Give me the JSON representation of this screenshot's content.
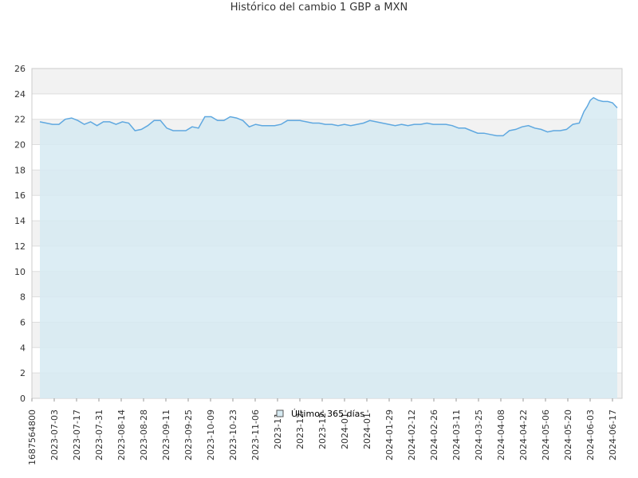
{
  "chart_data": {
    "type": "area",
    "title": "Histórico del cambio 1 GBP a MXN",
    "xlabel": "",
    "ylabel": "",
    "ylim": [
      0,
      26
    ],
    "yticks": [
      0,
      2,
      4,
      6,
      8,
      10,
      12,
      14,
      16,
      18,
      20,
      22,
      24,
      26
    ],
    "x_tick_labels": [
      "1687564800",
      "2023-07-03",
      "2023-07-17",
      "2023-07-31",
      "2023-08-14",
      "2023-08-28",
      "2023-09-11",
      "2023-09-25",
      "2023-10-09",
      "2023-10-23",
      "2023-11-06",
      "2023-11-",
      "2023-12-",
      "2023-12-",
      "2024-01-",
      "2024-01-",
      "2024-01-29",
      "2024-02-12",
      "2024-02-26",
      "2024-03-11",
      "2024-03-25",
      "2024-04-08",
      "2024-04-22",
      "2024-05-06",
      "2024-05-20",
      "2024-06-03",
      "2024-06-17"
    ],
    "grid": true,
    "legend_position": "bottom-center",
    "series": [
      {
        "name": "Últimos 365 días",
        "color": "#5fa8e0",
        "fill": "#d6eaf2",
        "x": [
          "2023-06-24",
          "2023-06-28",
          "2023-07-02",
          "2023-07-06",
          "2023-07-10",
          "2023-07-14",
          "2023-07-18",
          "2023-07-22",
          "2023-07-26",
          "2023-07-30",
          "2023-08-03",
          "2023-08-07",
          "2023-08-11",
          "2023-08-15",
          "2023-08-19",
          "2023-08-23",
          "2023-08-27",
          "2023-08-31",
          "2023-09-04",
          "2023-09-08",
          "2023-09-12",
          "2023-09-16",
          "2023-09-20",
          "2023-09-24",
          "2023-09-28",
          "2023-10-02",
          "2023-10-06",
          "2023-10-10",
          "2023-10-14",
          "2023-10-18",
          "2023-10-22",
          "2023-10-26",
          "2023-10-30",
          "2023-11-03",
          "2023-11-07",
          "2023-11-11",
          "2023-11-15",
          "2023-11-19",
          "2023-11-23",
          "2023-11-27",
          "2023-12-01",
          "2023-12-05",
          "2023-12-09",
          "2023-12-13",
          "2023-12-17",
          "2023-12-21",
          "2023-12-25",
          "2023-12-29",
          "2024-01-02",
          "2024-01-06",
          "2024-01-10",
          "2024-01-14",
          "2024-01-18",
          "2024-01-22",
          "2024-01-26",
          "2024-01-30",
          "2024-02-03",
          "2024-02-07",
          "2024-02-11",
          "2024-02-15",
          "2024-02-19",
          "2024-02-23",
          "2024-02-27",
          "2024-03-02",
          "2024-03-06",
          "2024-03-10",
          "2024-03-14",
          "2024-03-18",
          "2024-03-22",
          "2024-03-26",
          "2024-03-30",
          "2024-04-03",
          "2024-04-07",
          "2024-04-11",
          "2024-04-15",
          "2024-04-19",
          "2024-04-23",
          "2024-04-27",
          "2024-05-01",
          "2024-05-05",
          "2024-05-09",
          "2024-05-13",
          "2024-05-17",
          "2024-05-21",
          "2024-05-25",
          "2024-05-29",
          "2024-06-01",
          "2024-06-03",
          "2024-06-05",
          "2024-06-07",
          "2024-06-10",
          "2024-06-13",
          "2024-06-16",
          "2024-06-19",
          "2024-06-22"
        ],
        "values": [
          21.8,
          21.7,
          21.6,
          21.6,
          22.0,
          22.1,
          21.9,
          21.6,
          21.8,
          21.5,
          21.8,
          21.8,
          21.6,
          21.8,
          21.7,
          21.1,
          21.2,
          21.5,
          21.9,
          21.9,
          21.3,
          21.1,
          21.1,
          21.1,
          21.4,
          21.3,
          22.2,
          22.2,
          21.9,
          21.9,
          22.2,
          22.1,
          21.9,
          21.4,
          21.6,
          21.5,
          21.5,
          21.5,
          21.6,
          21.9,
          21.9,
          21.9,
          21.8,
          21.7,
          21.7,
          21.6,
          21.6,
          21.5,
          21.6,
          21.5,
          21.6,
          21.7,
          21.9,
          21.8,
          21.7,
          21.6,
          21.5,
          21.6,
          21.5,
          21.6,
          21.6,
          21.7,
          21.6,
          21.6,
          21.6,
          21.5,
          21.3,
          21.3,
          21.1,
          20.9,
          20.9,
          20.8,
          20.7,
          20.7,
          21.1,
          21.2,
          21.4,
          21.5,
          21.3,
          21.2,
          21.0,
          21.1,
          21.1,
          21.2,
          21.6,
          21.7,
          22.6,
          23.0,
          23.5,
          23.7,
          23.5,
          23.4,
          23.4,
          23.3,
          22.9
        ]
      }
    ]
  }
}
